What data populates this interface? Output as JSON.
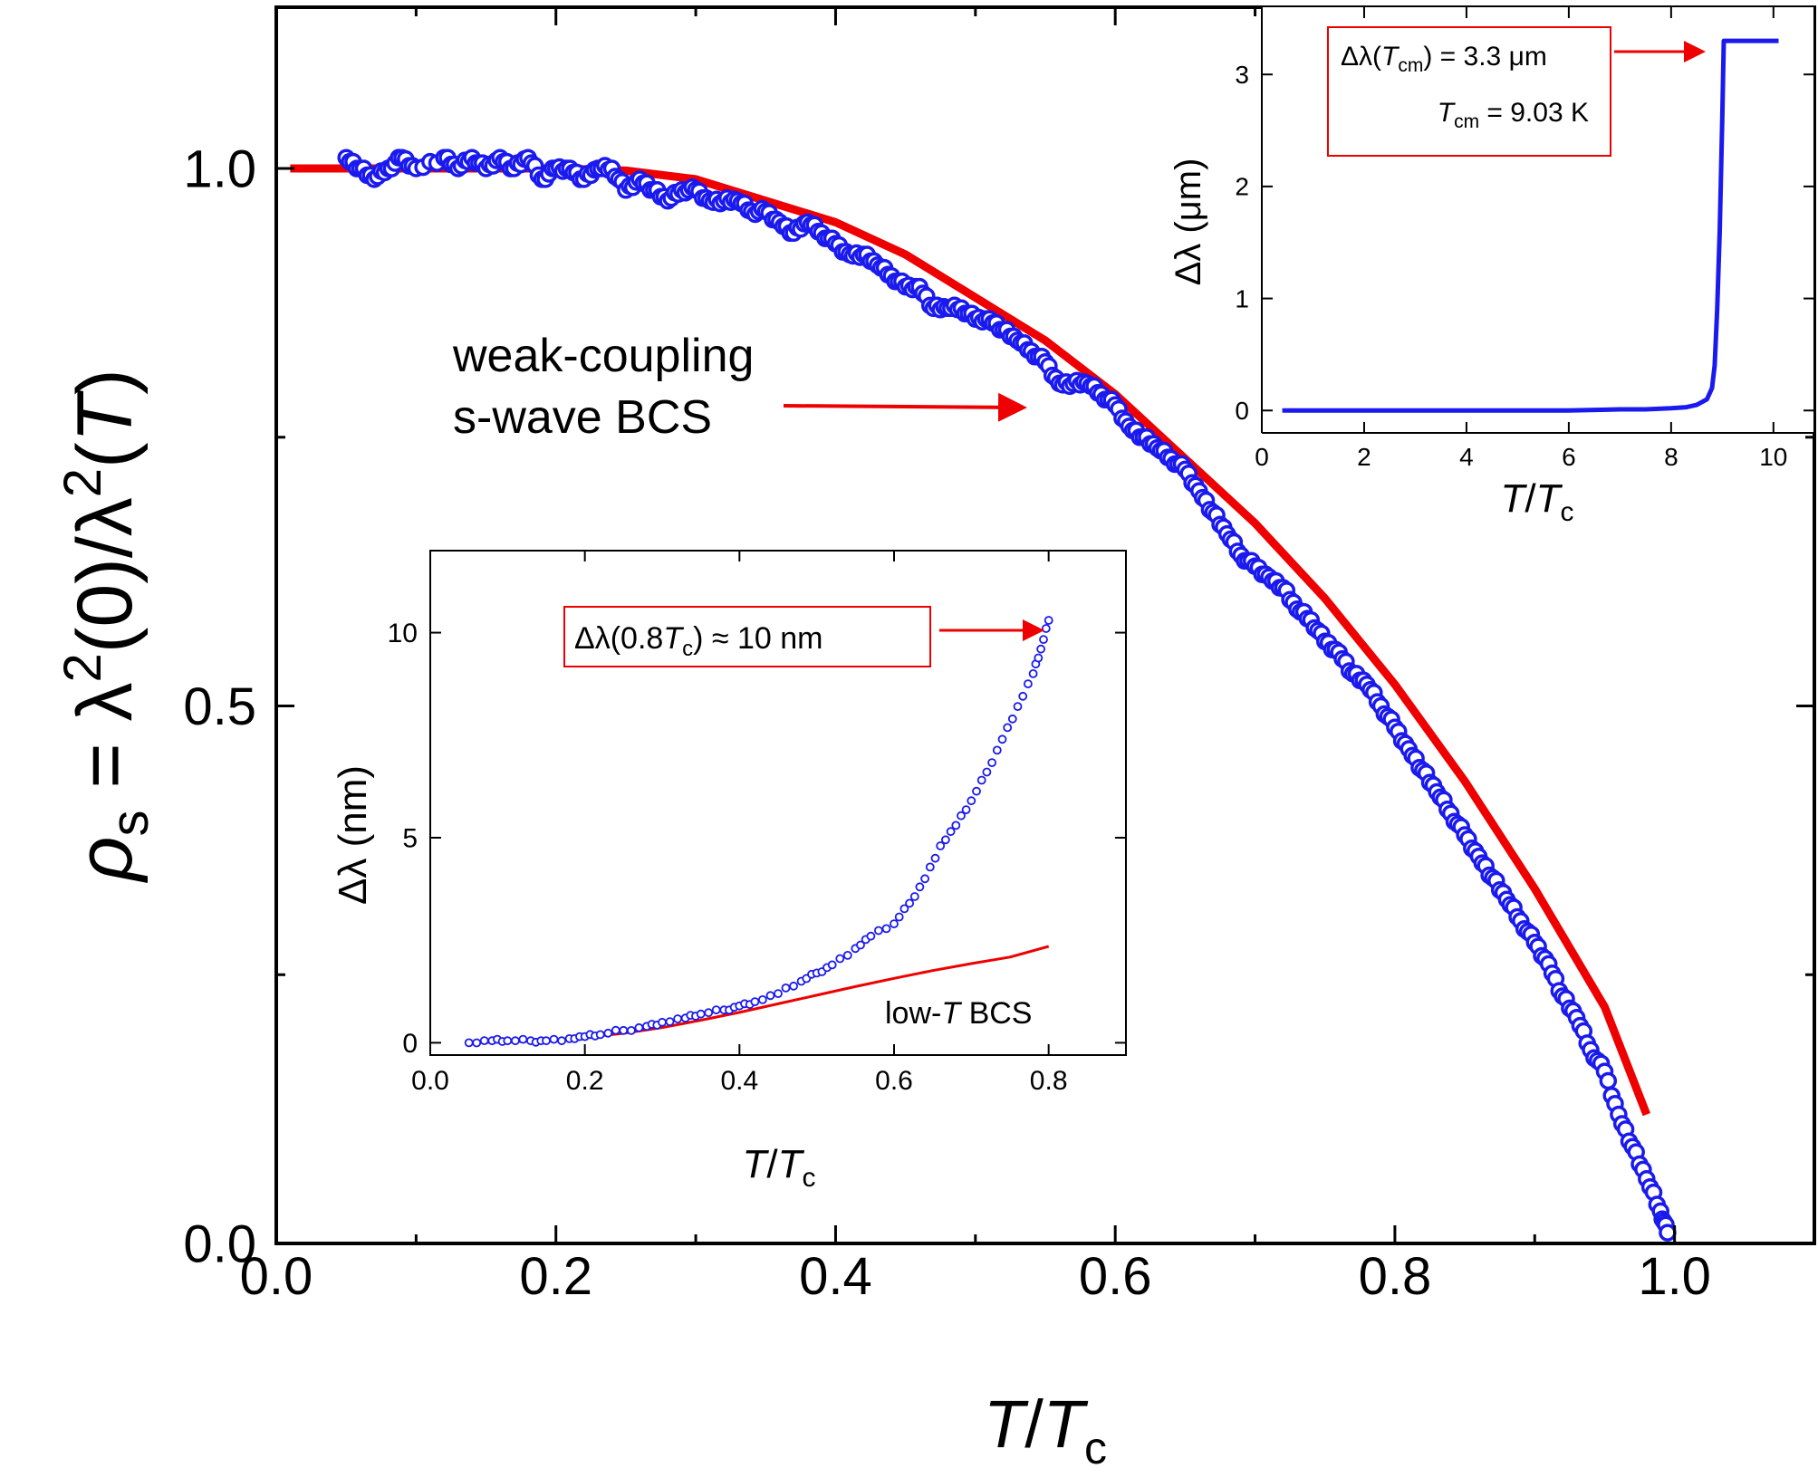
{
  "colors": {
    "data": "#1a1aee",
    "fit": "#ee0000",
    "axis": "#000000",
    "background": "#ffffff"
  },
  "chart_data": [
    {
      "id": "main",
      "type": "scatter",
      "xlabel": {
        "base": "T",
        "sep": "/",
        "base2": "T",
        "sub2": "c"
      },
      "ylabel": {
        "rho": "ρ",
        "rho_sub": "s",
        "eq": " = λ",
        "sup1": "2",
        "mid": "(0)/λ",
        "sup2": "2",
        "open": "(",
        "T": "T",
        "close": ")"
      },
      "xlim": [
        0.0,
        1.1
      ],
      "ylim": [
        0.0,
        1.15
      ],
      "xticks": [
        0.0,
        0.2,
        0.4,
        0.6,
        0.8,
        1.0
      ],
      "xtick_labels": [
        "0.0",
        "0.2",
        "0.4",
        "0.6",
        "0.8",
        "1.0"
      ],
      "yticks": [
        0.0,
        0.5,
        1.0
      ],
      "ytick_labels": [
        "0.0",
        "0.5",
        "1.0"
      ],
      "grid": false,
      "series": [
        {
          "kind": "data",
          "marker": "open-circle",
          "color": "#1a1aee",
          "x": [
            0.05,
            0.06,
            0.07,
            0.08,
            0.09,
            0.1,
            0.12,
            0.13,
            0.14,
            0.15,
            0.16,
            0.17,
            0.18,
            0.19,
            0.2,
            0.21,
            0.22,
            0.23,
            0.24,
            0.25,
            0.26,
            0.27,
            0.28,
            0.29,
            0.3,
            0.31,
            0.32,
            0.33,
            0.34,
            0.35,
            0.36,
            0.37,
            0.38,
            0.39,
            0.4,
            0.41,
            0.42,
            0.43,
            0.44,
            0.45,
            0.46,
            0.47,
            0.48,
            0.49,
            0.5,
            0.51,
            0.52,
            0.53,
            0.54,
            0.55,
            0.56,
            0.57,
            0.58,
            0.59,
            0.6,
            0.61,
            0.62,
            0.63,
            0.64,
            0.65,
            0.66,
            0.67,
            0.68,
            0.69,
            0.7,
            0.71,
            0.72,
            0.73,
            0.74,
            0.75,
            0.76,
            0.77,
            0.78,
            0.79,
            0.8,
            0.81,
            0.82,
            0.83,
            0.84,
            0.85,
            0.86,
            0.87,
            0.88,
            0.89,
            0.9,
            0.91,
            0.92,
            0.93,
            0.94,
            0.95,
            0.96,
            0.97,
            0.98,
            0.99,
            0.995
          ],
          "y": [
            1.01,
            1.0,
            0.99,
            1.0,
            1.01,
            1.0,
            1.01,
            1.0,
            1.01,
            1.0,
            1.01,
            1.0,
            1.01,
            0.99,
            1.0,
            1.0,
            0.99,
            1.0,
            1.0,
            0.98,
            0.99,
            0.98,
            0.97,
            0.98,
            0.98,
            0.97,
            0.97,
            0.97,
            0.96,
            0.96,
            0.95,
            0.94,
            0.95,
            0.94,
            0.93,
            0.92,
            0.92,
            0.91,
            0.9,
            0.89,
            0.89,
            0.87,
            0.87,
            0.87,
            0.86,
            0.86,
            0.85,
            0.84,
            0.83,
            0.82,
            0.8,
            0.8,
            0.8,
            0.79,
            0.78,
            0.76,
            0.75,
            0.74,
            0.73,
            0.72,
            0.7,
            0.68,
            0.66,
            0.64,
            0.63,
            0.62,
            0.61,
            0.59,
            0.58,
            0.56,
            0.55,
            0.53,
            0.52,
            0.5,
            0.48,
            0.46,
            0.44,
            0.42,
            0.4,
            0.38,
            0.36,
            0.34,
            0.32,
            0.3,
            0.28,
            0.26,
            0.23,
            0.21,
            0.18,
            0.16,
            0.12,
            0.09,
            0.06,
            0.03,
            0.01
          ]
        },
        {
          "kind": "fit",
          "name": "weak-coupling s-wave BCS",
          "color": "#ee0000",
          "x": [
            0.01,
            0.05,
            0.1,
            0.15,
            0.2,
            0.25,
            0.3,
            0.35,
            0.4,
            0.45,
            0.5,
            0.55,
            0.6,
            0.65,
            0.7,
            0.75,
            0.8,
            0.85,
            0.9,
            0.95,
            0.98
          ],
          "y": [
            1.0,
            1.0,
            1.0,
            1.0,
            1.0,
            0.998,
            0.99,
            0.97,
            0.95,
            0.92,
            0.88,
            0.84,
            0.79,
            0.73,
            0.67,
            0.6,
            0.52,
            0.43,
            0.33,
            0.22,
            0.12
          ]
        }
      ],
      "annotation": {
        "line1": "weak-coupling",
        "line2": "s-wave BCS"
      }
    },
    {
      "id": "inset-bottom",
      "type": "scatter",
      "xlabel": {
        "base": "T",
        "sep": "/",
        "base2": "T",
        "sub2": "c"
      },
      "ylabel": "Δλ (nm)",
      "xlim": [
        0.0,
        0.9
      ],
      "ylim": [
        -0.3,
        12.0
      ],
      "xticks": [
        0.0,
        0.2,
        0.4,
        0.6,
        0.8
      ],
      "xtick_labels": [
        "0.0",
        "0.2",
        "0.4",
        "0.6",
        "0.8"
      ],
      "yticks": [
        0,
        5,
        10
      ],
      "ytick_labels": [
        "0",
        "5",
        "10"
      ],
      "series": [
        {
          "kind": "data",
          "marker": "open-circle",
          "color": "#1a1aee",
          "x": [
            0.05,
            0.08,
            0.1,
            0.13,
            0.15,
            0.18,
            0.2,
            0.22,
            0.25,
            0.28,
            0.3,
            0.33,
            0.35,
            0.38,
            0.4,
            0.42,
            0.45,
            0.48,
            0.5,
            0.52,
            0.55,
            0.57,
            0.6,
            0.62,
            0.64,
            0.66,
            0.68,
            0.7,
            0.72,
            0.74,
            0.76,
            0.78,
            0.79,
            0.8
          ],
          "y": [
            0.0,
            0.05,
            0.05,
            0.05,
            0.05,
            0.1,
            0.15,
            0.2,
            0.3,
            0.4,
            0.5,
            0.6,
            0.7,
            0.8,
            0.9,
            1.0,
            1.2,
            1.5,
            1.7,
            1.9,
            2.3,
            2.6,
            2.9,
            3.4,
            4.0,
            4.8,
            5.3,
            5.9,
            6.6,
            7.4,
            8.2,
            9.0,
            9.6,
            10.3
          ]
        },
        {
          "kind": "fit",
          "name": "low-T BCS",
          "color": "#ee0000",
          "x": [
            0.05,
            0.1,
            0.15,
            0.2,
            0.25,
            0.3,
            0.35,
            0.4,
            0.45,
            0.5,
            0.55,
            0.6,
            0.65,
            0.7,
            0.75,
            0.8
          ],
          "y": [
            0.0,
            0.02,
            0.06,
            0.13,
            0.23,
            0.37,
            0.55,
            0.74,
            0.95,
            1.16,
            1.37,
            1.57,
            1.76,
            1.93,
            2.09,
            2.35
          ]
        }
      ],
      "annotation": {
        "box_pre": "Δλ(0.8",
        "box_T": "T",
        "box_sub": "c",
        "box_post": ") ≈ 10 nm",
        "curve_label_pre": "low-",
        "curve_label_T": "T",
        "curve_label_post": " BCS"
      }
    },
    {
      "id": "inset-top",
      "type": "line",
      "xlabel": {
        "base": "T",
        "sep": "/",
        "base2": "T",
        "sub2": "c"
      },
      "ylabel": "Δλ (μm)",
      "xlim": [
        0,
        10.8
      ],
      "ylim": [
        -0.2,
        3.6
      ],
      "xticks": [
        0,
        2,
        4,
        6,
        8,
        10
      ],
      "xtick_labels": [
        "0",
        "2",
        "4",
        "6",
        "8",
        "10"
      ],
      "yticks": [
        0,
        1,
        2,
        3
      ],
      "ytick_labels": [
        "0",
        "1",
        "2",
        "3"
      ],
      "series": [
        {
          "kind": "data",
          "color": "#1a1aee",
          "x": [
            0.4,
            1,
            2,
            3,
            4,
            5,
            6,
            7,
            7.5,
            8,
            8.3,
            8.5,
            8.7,
            8.8,
            8.85,
            8.9,
            8.95,
            9.0,
            9.03,
            9.2,
            9.6,
            10.0,
            10.1
          ],
          "y": [
            0.0,
            0.0,
            0.0,
            0.0,
            0.0,
            0.0,
            0.0,
            0.01,
            0.01,
            0.02,
            0.03,
            0.05,
            0.1,
            0.2,
            0.4,
            0.9,
            1.6,
            2.6,
            3.3,
            3.3,
            3.3,
            3.3,
            3.3
          ]
        }
      ],
      "annotation": {
        "line1_pre": "Δλ(",
        "line1_T": "T",
        "line1_sub": "cm",
        "line1_post": ") = 3.3 μm",
        "line2_T": "T",
        "line2_sub": "cm",
        "line2_post": " = 9.03 K"
      }
    }
  ]
}
